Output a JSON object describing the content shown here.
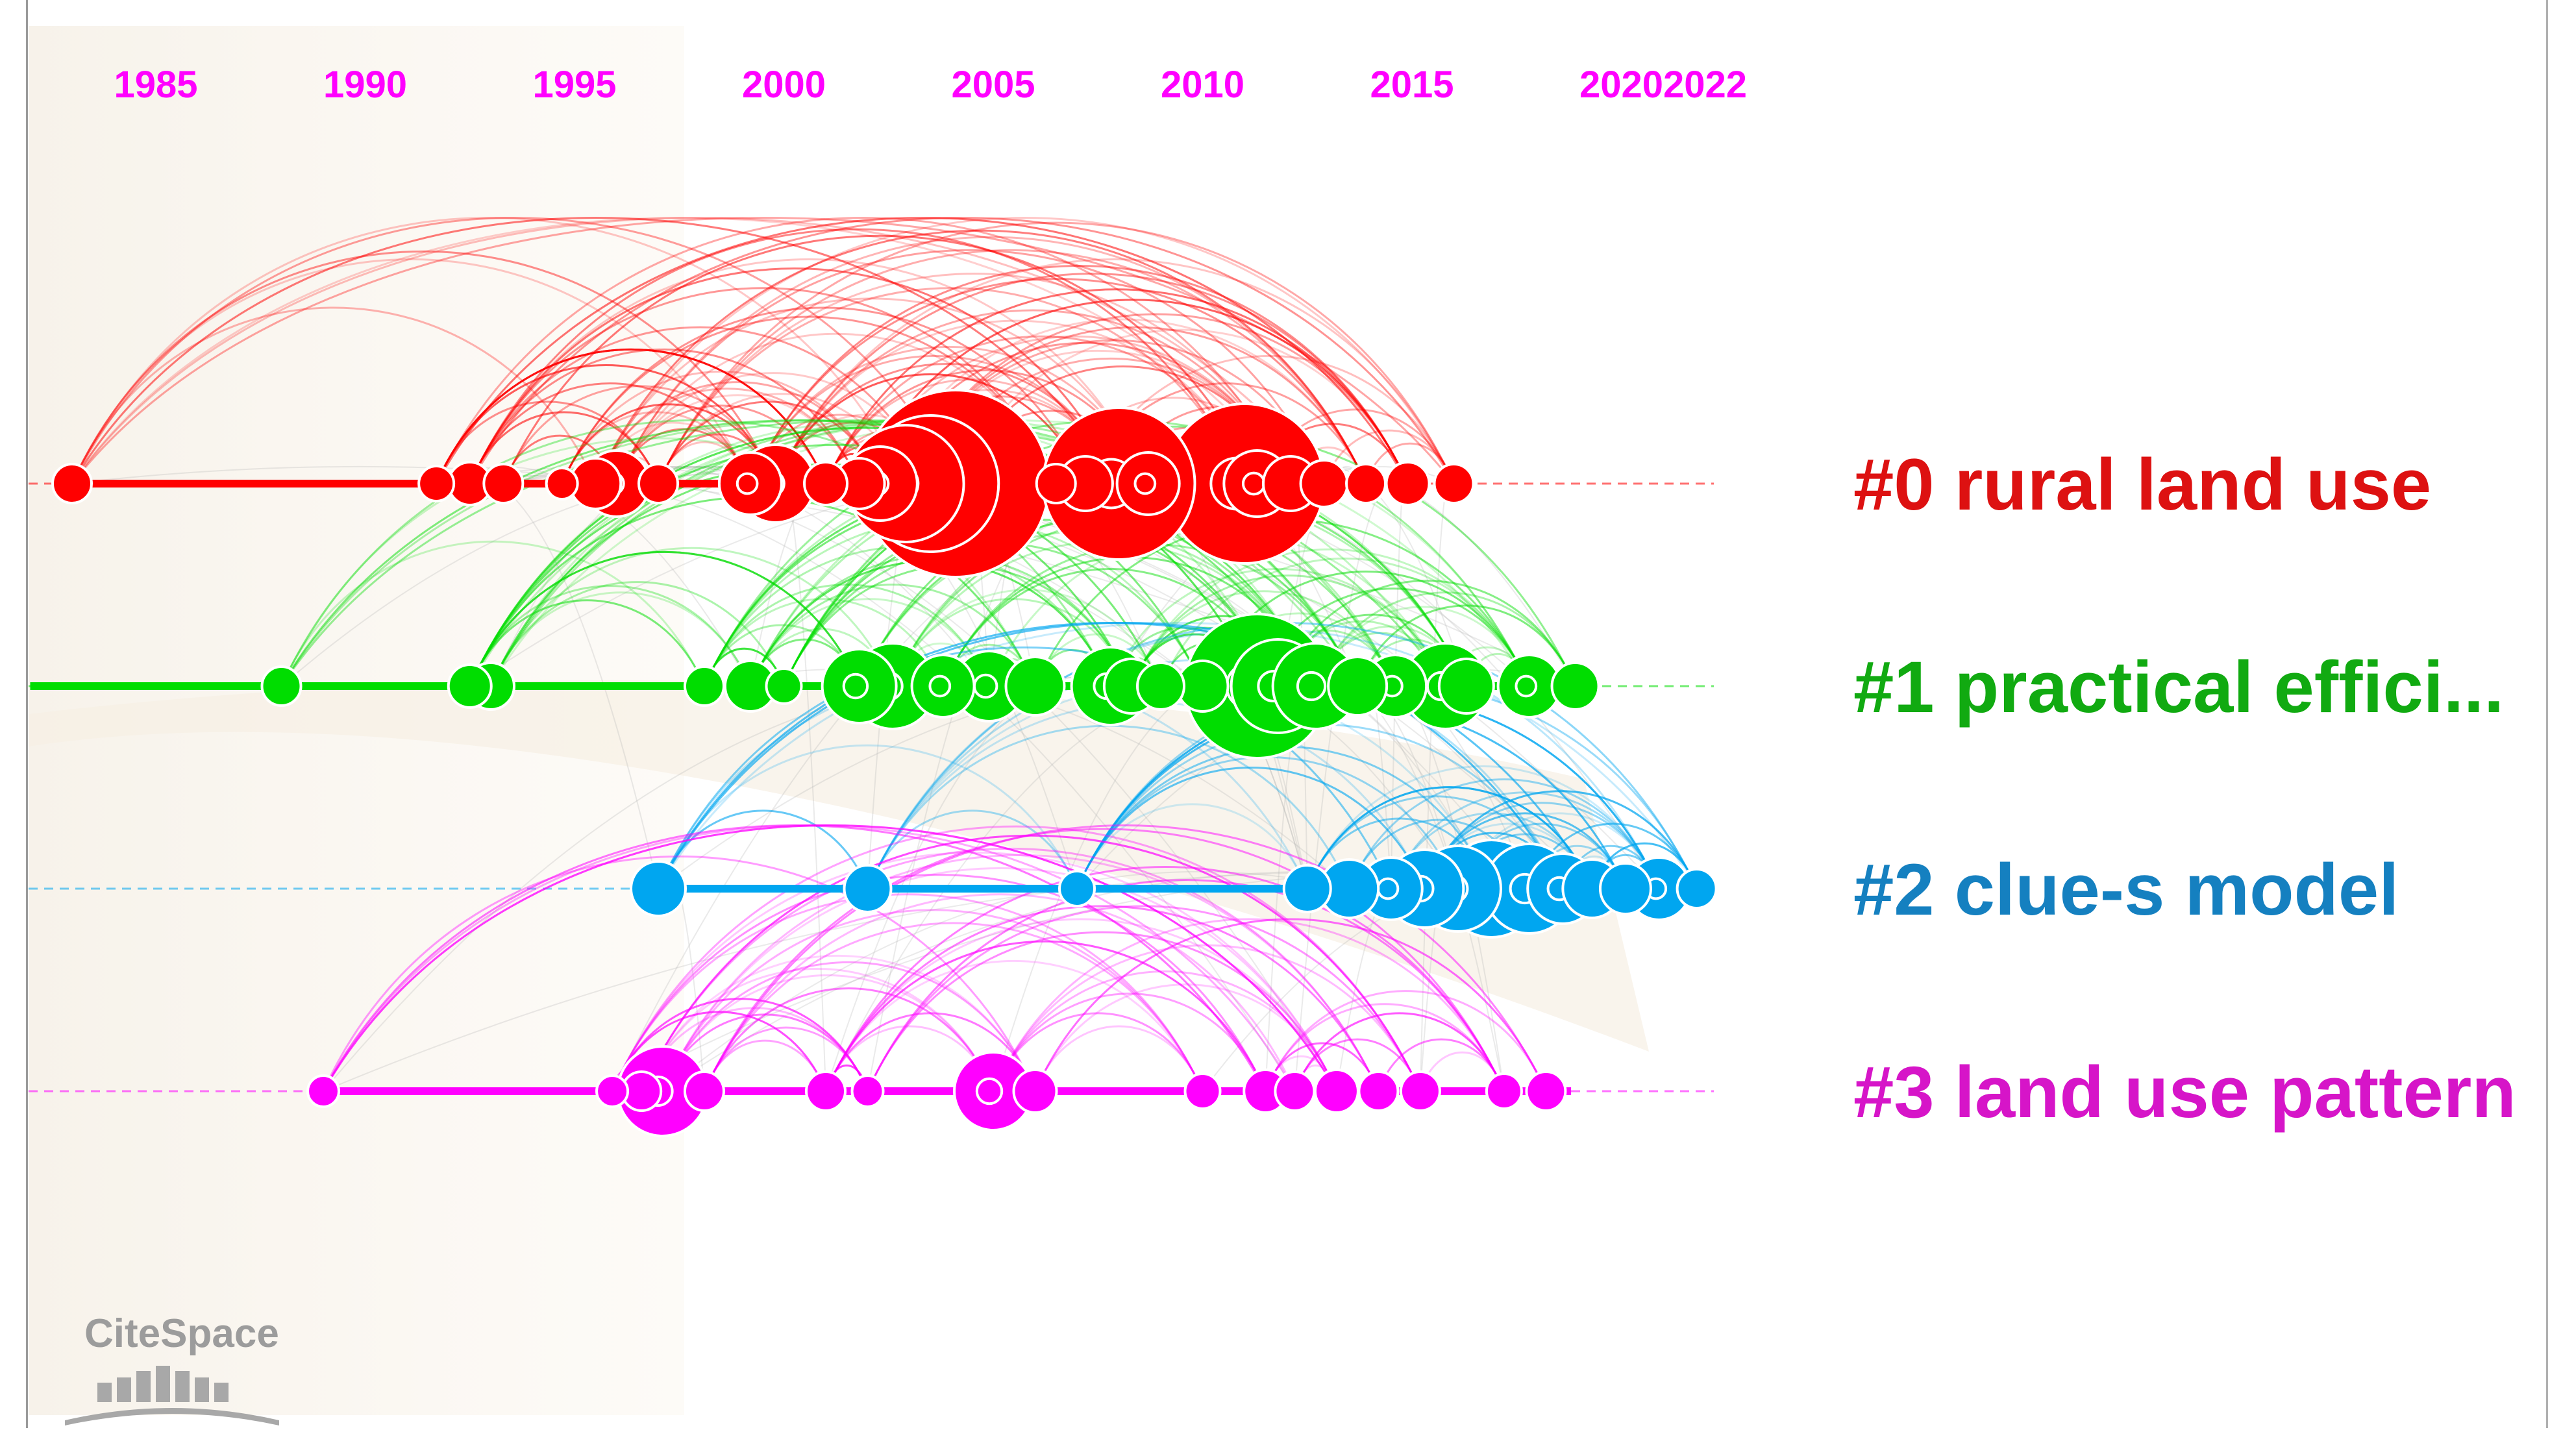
{
  "chart_data": {
    "type": "timeline",
    "title": "",
    "xlabel": "",
    "ylabel": "",
    "xlim": [
      1982,
      2022
    ],
    "year_ticks": [
      "1985",
      "1990",
      "1995",
      "2000",
      "2005",
      "2010",
      "2015",
      "2020",
      "2022"
    ],
    "clusters": [
      {
        "id": 0,
        "label": "#0 rural land use",
        "color": "#ff0000",
        "label_color": "#dd1111",
        "line_span": [
          1983,
          2015
        ],
        "nodes": [
          {
            "year": 1983,
            "r": 1
          },
          {
            "year": 1991.7,
            "r": 0.9
          },
          {
            "year": 1992.5,
            "r": 1.1
          },
          {
            "year": 1993.3,
            "r": 1
          },
          {
            "year": 1994.7,
            "r": 0.8
          },
          {
            "year": 1995.5,
            "r": 1.3
          },
          {
            "year": 1996,
            "r": 1.7
          },
          {
            "year": 1997,
            "r": 1
          },
          {
            "year": 1999.2,
            "r": 1.6
          },
          {
            "year": 1999.8,
            "r": 2
          },
          {
            "year": 2001,
            "r": 1.1
          },
          {
            "year": 2001.8,
            "r": 1.3
          },
          {
            "year": 2002.3,
            "r": 1.9
          },
          {
            "year": 2002.9,
            "r": 3
          },
          {
            "year": 2003.5,
            "r": 3.5
          },
          {
            "year": 2004.1,
            "r": 4.8
          },
          {
            "year": 2006.5,
            "r": 1
          },
          {
            "year": 2007.2,
            "r": 1.4
          },
          {
            "year": 2008,
            "r": 3.9
          },
          {
            "year": 2008.7,
            "r": 1.6
          },
          {
            "year": 2011,
            "r": 4.1
          },
          {
            "year": 2011.3,
            "r": 1.7
          },
          {
            "year": 2012.1,
            "r": 1.4
          },
          {
            "year": 2012.9,
            "r": 1.2
          },
          {
            "year": 2013.9,
            "r": 1
          },
          {
            "year": 2014.9,
            "r": 1.1
          },
          {
            "year": 2016,
            "r": 1
          }
        ]
      },
      {
        "id": 1,
        "label": "#1 practical effici...",
        "color": "#00dd00",
        "label_color": "#11aa11",
        "line_span": [
          1982,
          2018.5
        ],
        "nodes": [
          {
            "year": 1988,
            "r": 1
          },
          {
            "year": 1992.5,
            "r": 1.1
          },
          {
            "year": 1993,
            "r": 1.2
          },
          {
            "year": 1998.1,
            "r": 1
          },
          {
            "year": 1999.2,
            "r": 1.3
          },
          {
            "year": 2000,
            "r": 0.9
          },
          {
            "year": 2001.8,
            "r": 1.9
          },
          {
            "year": 2002.6,
            "r": 2.2
          },
          {
            "year": 2003.8,
            "r": 1.6
          },
          {
            "year": 2004.9,
            "r": 1.8
          },
          {
            "year": 2006,
            "r": 1.5
          },
          {
            "year": 2007.8,
            "r": 2
          },
          {
            "year": 2008.3,
            "r": 1.4
          },
          {
            "year": 2009,
            "r": 1.2
          },
          {
            "year": 2010,
            "r": 1.3
          },
          {
            "year": 2011.3,
            "r": 3.7
          },
          {
            "year": 2011.8,
            "r": 2.4
          },
          {
            "year": 2012.7,
            "r": 2.2
          },
          {
            "year": 2013.7,
            "r": 1.5
          },
          {
            "year": 2014.6,
            "r": 1.6
          },
          {
            "year": 2015.8,
            "r": 2.2
          },
          {
            "year": 2016.3,
            "r": 1.4
          },
          {
            "year": 2017.8,
            "r": 1.6
          },
          {
            "year": 2018.9,
            "r": 1.2
          }
        ]
      },
      {
        "id": 2,
        "label": "#2 clue-s model",
        "color": "#00a6f0",
        "label_color": "#1580c0",
        "line_span": [
          1997,
          2021.5
        ],
        "nodes": [
          {
            "year": 1997,
            "r": 1.4
          },
          {
            "year": 2002,
            "r": 1.2
          },
          {
            "year": 2007,
            "r": 0.9
          },
          {
            "year": 2012.5,
            "r": 1.2
          },
          {
            "year": 2013.5,
            "r": 1.5
          },
          {
            "year": 2014.5,
            "r": 1.6
          },
          {
            "year": 2015.3,
            "r": 2
          },
          {
            "year": 2016.1,
            "r": 2.2
          },
          {
            "year": 2016.9,
            "r": 2.5
          },
          {
            "year": 2017.8,
            "r": 2.3
          },
          {
            "year": 2018.6,
            "r": 1.8
          },
          {
            "year": 2019.3,
            "r": 1.5
          },
          {
            "year": 2020.1,
            "r": 1.3
          },
          {
            "year": 2020.9,
            "r": 1.6
          },
          {
            "year": 2021.8,
            "r": 1
          }
        ]
      },
      {
        "id": 3,
        "label": "#3 land use pattern",
        "color": "#ff00ff",
        "label_color": "#d615c8",
        "line_span": [
          1989,
          2018.8
        ],
        "nodes": [
          {
            "year": 1989,
            "r": 0.8
          },
          {
            "year": 1995.9,
            "r": 0.8
          },
          {
            "year": 1996.6,
            "r": 1
          },
          {
            "year": 1997.1,
            "r": 2.3
          },
          {
            "year": 1998.1,
            "r": 1
          },
          {
            "year": 2001,
            "r": 1
          },
          {
            "year": 2002,
            "r": 0.8
          },
          {
            "year": 2005,
            "r": 2
          },
          {
            "year": 2006,
            "r": 1.1
          },
          {
            "year": 2010,
            "r": 0.9
          },
          {
            "year": 2011.5,
            "r": 1.1
          },
          {
            "year": 2012.2,
            "r": 1
          },
          {
            "year": 2013.2,
            "r": 1.1
          },
          {
            "year": 2014.2,
            "r": 1
          },
          {
            "year": 2015.2,
            "r": 1
          },
          {
            "year": 2017.2,
            "r": 0.9
          },
          {
            "year": 2018.2,
            "r": 1
          }
        ]
      }
    ]
  },
  "watermark": {
    "text": "CiteSpace",
    "color": "#9c9c9c"
  }
}
